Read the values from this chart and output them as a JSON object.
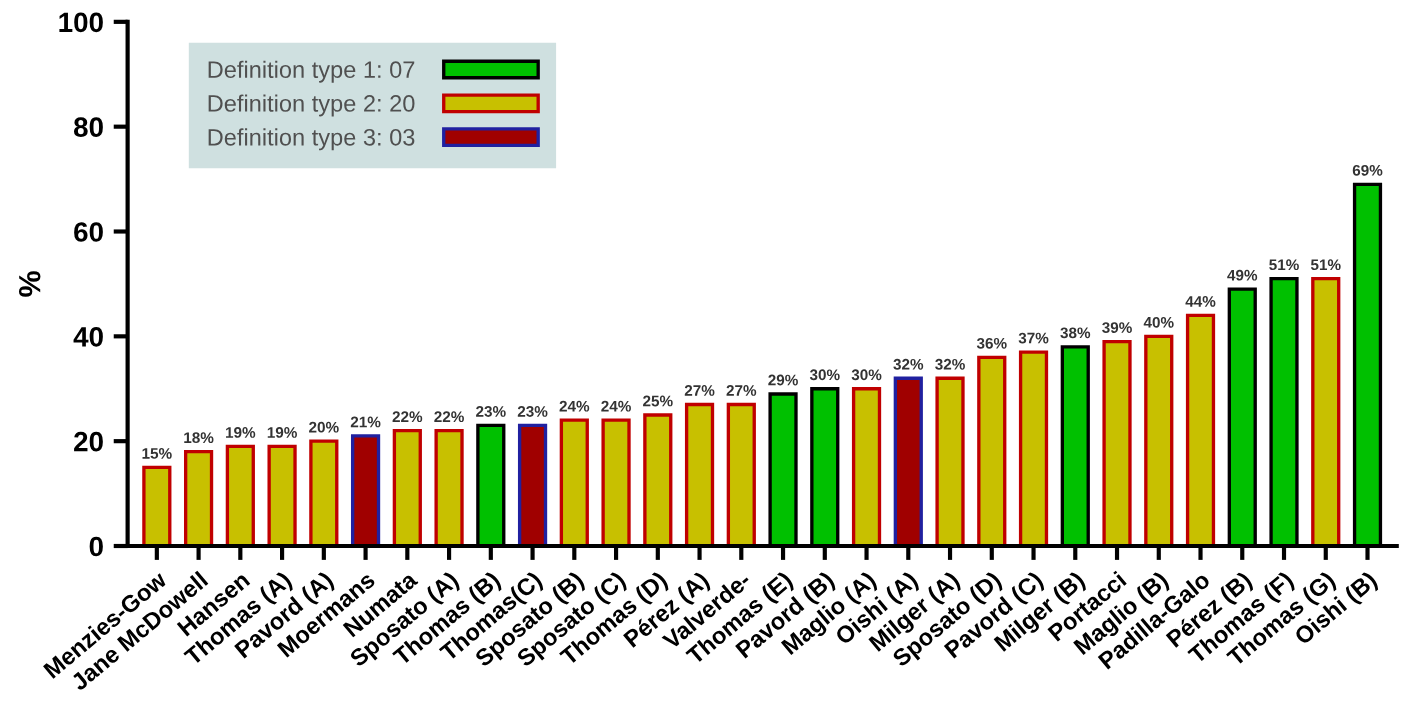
{
  "chart_data": {
    "type": "bar",
    "ylabel": "%",
    "categories": [
      "Menzies-Gow",
      "Jane McDowell",
      "Hansen",
      "Thomas (A)",
      "Pavord (A)",
      "Moermans",
      "Numata",
      "Sposato (A)",
      "Thomas (B)",
      "Thomas(C)",
      "Sposato (B)",
      "Sposato (C)",
      "Thomas (D)",
      "Pérez (A)",
      "Valverde-",
      "Thomas (E)",
      "Pavord (B)",
      "Maglio (A)",
      "Oishi (A)",
      "Milger (A)",
      "Sposato (D)",
      "Pavord (C)",
      "Milger (B)",
      "Portacci",
      "Maglio (B)",
      "Padilla-Galo",
      "Pérez (B)",
      "Thomas (F)",
      "Thomas (G)",
      "Oishi (B)"
    ],
    "series": [
      {
        "name": "Definition type 1: 07",
        "color": "#00c000",
        "values": [
          null,
          null,
          null,
          null,
          null,
          null,
          null,
          null,
          23,
          null,
          null,
          null,
          null,
          null,
          null,
          29,
          30,
          null,
          null,
          null,
          null,
          null,
          38,
          null,
          null,
          null,
          49,
          51,
          null,
          69
        ],
        "value_labels": [
          null,
          null,
          null,
          null,
          null,
          null,
          null,
          null,
          "23%",
          null,
          null,
          null,
          null,
          null,
          null,
          "29%",
          "30%",
          null,
          null,
          null,
          null,
          null,
          "38%",
          null,
          null,
          null,
          "49%",
          "51%",
          null,
          "69%"
        ]
      },
      {
        "name": "Definition type 2: 20",
        "color": "#c8c000",
        "values": [
          15,
          18,
          19,
          19,
          20,
          null,
          22,
          22,
          null,
          null,
          24,
          24,
          25,
          27,
          27,
          null,
          null,
          30,
          null,
          32,
          36,
          37,
          null,
          39,
          40,
          44,
          null,
          null,
          51,
          null
        ],
        "value_labels": [
          "15%",
          "18%",
          "19%",
          "19%",
          "20%",
          null,
          "22%",
          "22%",
          null,
          null,
          "24%",
          "24%",
          "25%",
          "27%",
          "27%",
          null,
          null,
          "30%",
          null,
          "32%",
          "36%",
          "37%",
          null,
          "39%",
          "40%",
          "44%",
          null,
          null,
          "51%",
          null
        ]
      },
      {
        "name": "Definition type 3: 03",
        "color": "#a00000",
        "values": [
          null,
          null,
          null,
          null,
          null,
          21,
          null,
          null,
          null,
          23,
          null,
          null,
          null,
          null,
          null,
          null,
          null,
          null,
          32,
          null,
          null,
          null,
          null,
          null,
          null,
          null,
          null,
          null,
          null,
          null
        ],
        "value_labels": [
          null,
          null,
          null,
          null,
          null,
          "21%",
          null,
          null,
          null,
          "23%",
          null,
          null,
          null,
          null,
          null,
          null,
          null,
          null,
          "32%",
          null,
          null,
          null,
          null,
          null,
          null,
          null,
          null,
          null,
          null,
          null
        ]
      }
    ],
    "ylim": [
      0,
      100
    ],
    "yticks": [
      0,
      20,
      40,
      60,
      80,
      100
    ],
    "legend": "top left"
  }
}
